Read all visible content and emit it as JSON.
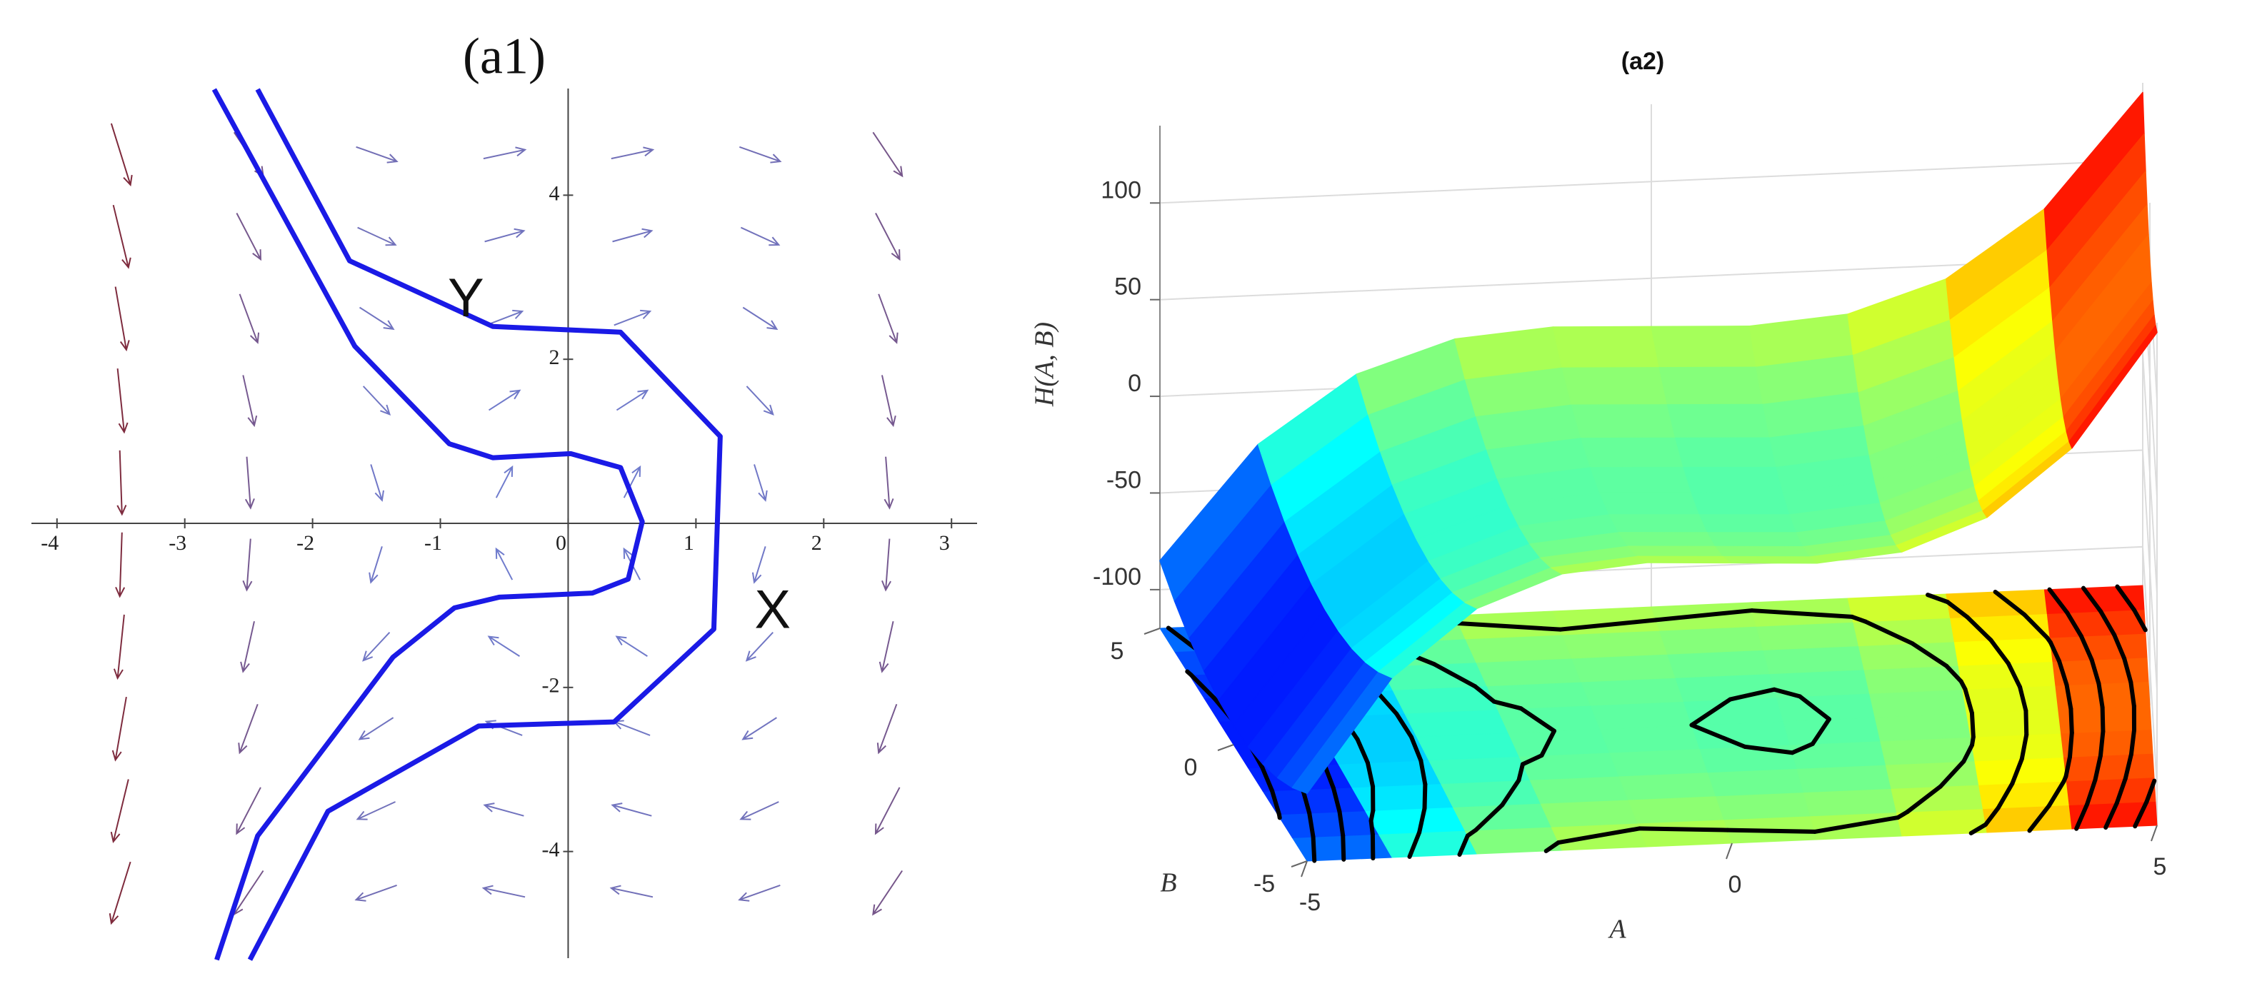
{
  "chart_data": [
    {
      "type": "vector-field",
      "title": "(a1)",
      "xlim": [
        -4.2,
        3.2
      ],
      "ylim": [
        -5.3,
        5.3
      ],
      "xticks": [
        -4,
        -3,
        -2,
        -1,
        0,
        1,
        2,
        3
      ],
      "yticks": [
        -4,
        -2,
        2,
        4
      ],
      "arrow_colors": [
        "#6f82d8",
        "#7e2a3c"
      ],
      "x": [
        -3.5,
        -2.5,
        -1.5,
        -0.5,
        0.5,
        1.5,
        2.5,
        -3.5,
        -2.5,
        -1.5,
        -0.5,
        0.5,
        1.5,
        2.5,
        -3.5,
        -2.5,
        -1.5,
        -0.5,
        0.5,
        1.5,
        2.5,
        -3.5,
        -2.5,
        -1.5,
        -0.5,
        0.5,
        1.5,
        2.5,
        -3.5,
        -2.5,
        -1.5,
        -0.5,
        0.5,
        1.5,
        2.5,
        -3.5,
        -2.5,
        -1.5,
        -0.5,
        0.5,
        1.5,
        2.5,
        -3.5,
        -2.5,
        -1.5,
        -0.5,
        0.5,
        1.5,
        2.5,
        -3.5,
        -2.5,
        -1.5,
        -0.5,
        0.5,
        1.5,
        2.5,
        -3.5,
        -2.5,
        -1.5,
        -0.5,
        0.5,
        1.5,
        2.5,
        -3.5,
        -2.5,
        -1.5,
        -0.5,
        0.5,
        1.5,
        2.5
      ],
      "y": [
        4.5,
        4.5,
        4.5,
        4.5,
        4.5,
        4.5,
        4.5,
        3.5,
        3.5,
        3.5,
        3.5,
        3.5,
        3.5,
        3.5,
        2.5,
        2.5,
        2.5,
        2.5,
        2.5,
        2.5,
        2.5,
        1.5,
        1.5,
        1.5,
        1.5,
        1.5,
        1.5,
        1.5,
        0.5,
        0.5,
        0.5,
        0.5,
        0.5,
        0.5,
        0.5,
        -0.5,
        -0.5,
        -0.5,
        -0.5,
        -0.5,
        -0.5,
        -0.5,
        -1.5,
        -1.5,
        -1.5,
        -1.5,
        -1.5,
        -1.5,
        -1.5,
        -2.5,
        -2.5,
        -2.5,
        -2.5,
        -2.5,
        -2.5,
        -2.5,
        -3.5,
        -3.5,
        -3.5,
        -3.5,
        -3.5,
        -3.5,
        -3.5,
        -4.5,
        -4.5,
        -4.5,
        -4.5,
        -4.5,
        -4.5,
        -4.5
      ],
      "u": [
        2.25,
        2.25,
        2.25,
        2.25,
        2.25,
        2.25,
        2.25,
        1.75,
        1.75,
        1.75,
        1.75,
        1.75,
        1.75,
        1.75,
        1.25,
        1.25,
        1.25,
        1.25,
        1.25,
        1.25,
        1.25,
        0.75,
        0.75,
        0.75,
        0.75,
        0.75,
        0.75,
        0.75,
        0.25,
        0.25,
        0.25,
        0.25,
        0.25,
        0.25,
        0.25,
        -0.25,
        -0.25,
        -0.25,
        -0.25,
        -0.25,
        -0.25,
        -0.25,
        -0.75,
        -0.75,
        -0.75,
        -0.75,
        -0.75,
        -0.75,
        -0.75,
        -1.25,
        -1.25,
        -1.25,
        -1.25,
        -1.25,
        -1.25,
        -1.25,
        -1.75,
        -1.75,
        -1.75,
        -1.75,
        -1.75,
        -1.75,
        -1.75,
        -2.25,
        -2.25,
        -2.25,
        -2.25,
        -2.25,
        -2.25,
        -2.25
      ],
      "v": [
        -11.25,
        -5.25,
        -1.25,
        0.75,
        0.75,
        -1.25,
        -5.25,
        -11.25,
        -5.25,
        -1.25,
        0.75,
        0.75,
        -1.25,
        -5.25,
        -11.25,
        -5.25,
        -1.25,
        0.75,
        0.75,
        -1.25,
        -5.25,
        -11.25,
        -5.25,
        -1.25,
        0.75,
        0.75,
        -1.25,
        -5.25,
        -11.25,
        -5.25,
        -1.25,
        0.75,
        0.75,
        -1.25,
        -5.25,
        -11.25,
        -5.25,
        -1.25,
        0.75,
        0.75,
        -1.25,
        -5.25,
        -11.25,
        -5.25,
        -1.25,
        0.75,
        0.75,
        -1.25,
        -5.25,
        -11.25,
        -5.25,
        -1.25,
        0.75,
        0.75,
        -1.25,
        -5.25,
        -11.25,
        -5.25,
        -1.25,
        0.75,
        0.75,
        -1.25,
        -5.25,
        -11.25,
        -5.25,
        -1.25,
        0.75,
        0.75,
        -1.25,
        -5.25
      ],
      "series": [
        {
          "color": "#1a1ae6",
          "x": [
            -2.43,
            -1.71,
            -0.59,
            0.41,
            1.19,
            1.14,
            0.36,
            -0.7,
            -1.88,
            -2.49
          ],
          "y": [
            5.29,
            3.2,
            2.4,
            2.33,
            1.06,
            -1.29,
            -2.42,
            -2.47,
            -3.51,
            -5.32
          ]
        },
        {
          "color": "#1a1ae6",
          "x": [
            -2.77,
            -1.67,
            -0.93,
            -0.59,
            0.02,
            0.41,
            0.58,
            0.47,
            0.19,
            -0.54,
            -0.89,
            -1.37,
            -2.43,
            -2.75
          ],
          "y": [
            5.29,
            2.16,
            0.97,
            0.8,
            0.85,
            0.68,
            0.02,
            -0.68,
            -0.85,
            -0.9,
            -1.03,
            -1.63,
            -3.81,
            -5.32
          ]
        }
      ],
      "annotations": [
        {
          "text": "X",
          "x": 1.6,
          "y": -1.1
        },
        {
          "text": "Y",
          "x": -0.8,
          "y": 2.7
        }
      ]
    },
    {
      "type": "surface3d",
      "title": "(a2)",
      "xlabel": "A",
      "ylabel": "B",
      "zlabel": "H(A, B)",
      "A": [
        -5,
        -4,
        -3,
        -2,
        -1,
        0,
        1,
        2,
        3,
        4,
        5
      ],
      "B": [
        -5,
        -4,
        -3,
        -2,
        -1,
        0,
        1,
        2,
        3,
        4,
        5
      ],
      "z": [
        [
          -85,
          -27,
          7,
          23,
          27,
          25,
          23,
          27,
          43,
          77,
          135
        ],
        [
          -94,
          -36,
          -2,
          14,
          18,
          16,
          14,
          18,
          34,
          68,
          126
        ],
        [
          -101,
          -43,
          -9,
          7,
          11,
          9,
          7,
          11,
          27,
          61,
          119
        ],
        [
          -106,
          -48,
          -14,
          2,
          6,
          4,
          2,
          6,
          22,
          56,
          114
        ],
        [
          -109,
          -51,
          -17,
          -1,
          3,
          1,
          -1,
          3,
          19,
          53,
          111
        ],
        [
          -110,
          -52,
          -18,
          -2,
          2,
          0,
          -2,
          2,
          18,
          52,
          110
        ],
        [
          -109,
          -51,
          -17,
          -1,
          3,
          1,
          -1,
          3,
          19,
          53,
          111
        ],
        [
          -106,
          -48,
          -14,
          2,
          6,
          4,
          2,
          6,
          22,
          56,
          114
        ],
        [
          -101,
          -43,
          -9,
          7,
          11,
          9,
          7,
          11,
          27,
          61,
          119
        ],
        [
          -94,
          -36,
          -2,
          14,
          18,
          16,
          14,
          18,
          34,
          68,
          126
        ],
        [
          -85,
          -27,
          7,
          23,
          27,
          25,
          23,
          27,
          43,
          77,
          135
        ]
      ],
      "xlim": [
        -5,
        5
      ],
      "ylim": [
        -5,
        5
      ],
      "zlim": [
        -120,
        140
      ],
      "xticks": [
        -5,
        0,
        5
      ],
      "yticks": [
        -5,
        0,
        5
      ],
      "zticks": [
        -100,
        -50,
        0,
        50,
        100
      ],
      "contour_levels": [
        -100,
        -80,
        -60,
        -40,
        -20,
        0,
        20,
        40,
        60,
        80,
        100,
        120
      ],
      "contour_color": "#000000",
      "grid": true,
      "colormap": "jet"
    }
  ]
}
